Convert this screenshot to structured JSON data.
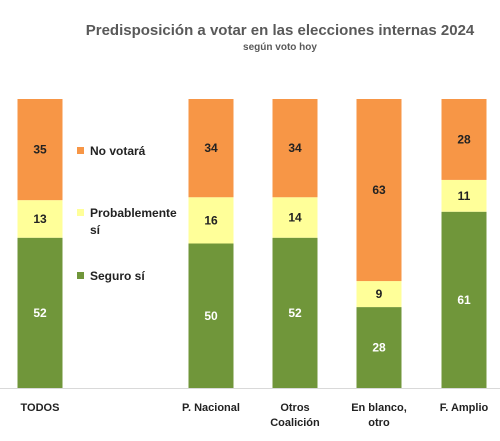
{
  "chart_data": {
    "type": "bar",
    "stacked": true,
    "title": "Predisposición a votar en las elecciones internas 2024",
    "subtitle": "según voto hoy",
    "categories": [
      [
        "TODOS"
      ],
      [
        "P. Nacional"
      ],
      [
        "Otros",
        "Coalición"
      ],
      [
        "En blanco,",
        "otro"
      ],
      [
        "F. Amplio"
      ]
    ],
    "series": [
      {
        "name": "Seguro sí",
        "color": "#70963A",
        "values": [
          52,
          50,
          52,
          28,
          61
        ]
      },
      {
        "name": "Probablemente sí",
        "label_lines": [
          "Probablemente",
          "sí"
        ],
        "color": "#FFFF99",
        "values": [
          13,
          16,
          14,
          9,
          11
        ]
      },
      {
        "name": "No votará",
        "color": "#F79646",
        "values": [
          35,
          34,
          34,
          63,
          28
        ]
      }
    ],
    "ylim": [
      0,
      100
    ],
    "grid": false,
    "legend_position": "center-left"
  }
}
